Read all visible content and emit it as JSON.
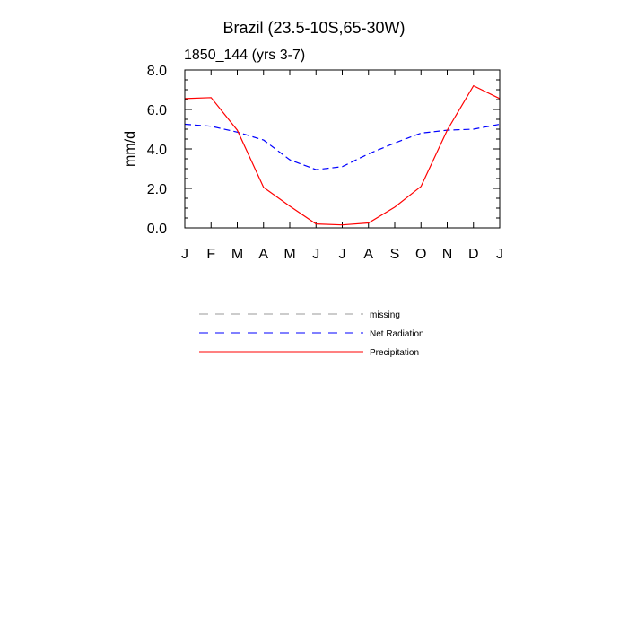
{
  "chart_data": {
    "type": "line",
    "title": "Brazil (23.5-10S,65-30W)",
    "subtitle": "1850_144 (yrs 3-7)",
    "ylabel": "mm/d",
    "xlabel": "",
    "ylim": [
      0,
      8
    ],
    "yticks": [
      "0.0",
      "2.0",
      "4.0",
      "6.0",
      "8.0"
    ],
    "categories": [
      "J",
      "F",
      "M",
      "A",
      "M",
      "J",
      "J",
      "A",
      "S",
      "O",
      "N",
      "D",
      "J"
    ],
    "series": [
      {
        "name": "Net Radiation",
        "color": "#0000ff",
        "dash": "dashed",
        "values": [
          5.25,
          5.15,
          4.85,
          4.45,
          3.45,
          2.95,
          3.1,
          3.75,
          4.3,
          4.8,
          4.95,
          5.0,
          5.25
        ]
      },
      {
        "name": "Precipitation",
        "color": "#ff0000",
        "dash": "solid",
        "values": [
          6.55,
          6.6,
          4.95,
          2.05,
          1.1,
          0.2,
          0.15,
          0.25,
          1.05,
          2.1,
          4.95,
          7.2,
          6.55
        ]
      }
    ],
    "legend": {
      "position": "below",
      "entries": [
        {
          "label": "missing",
          "color": "#999999",
          "dash": "dashed"
        },
        {
          "label": "Net Radiation",
          "color": "#0000ff",
          "dash": "dashed"
        },
        {
          "label": "Precipitation",
          "color": "#ff0000",
          "dash": "solid"
        }
      ]
    }
  }
}
